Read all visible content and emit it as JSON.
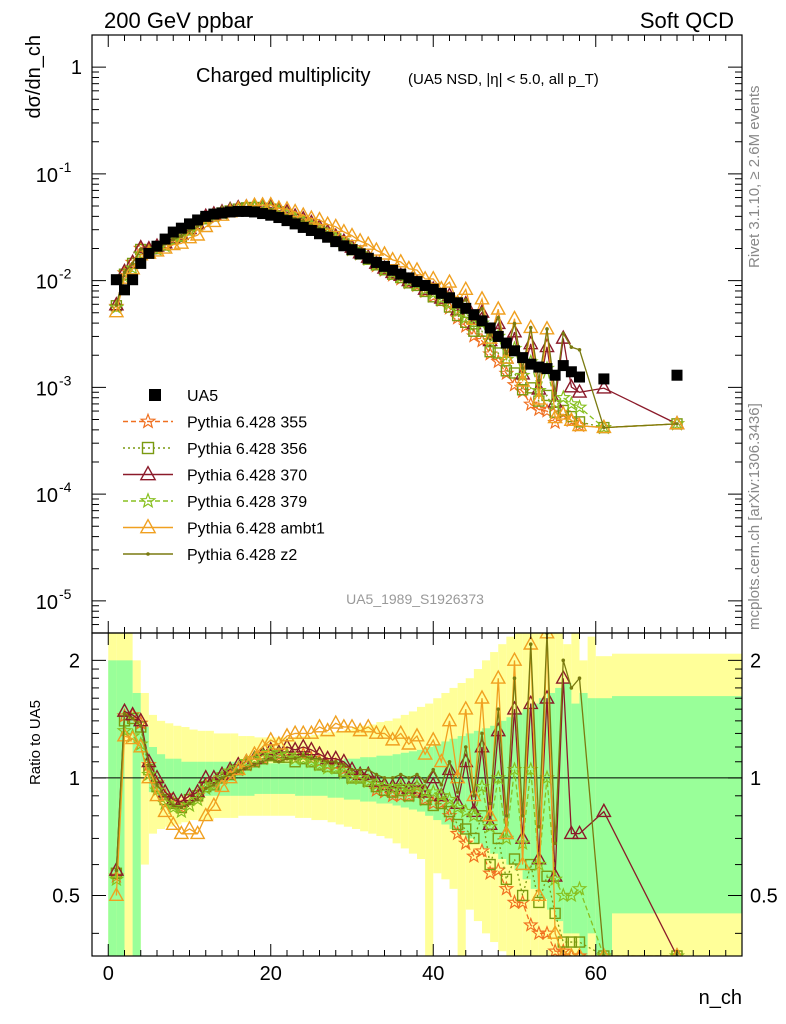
{
  "header": {
    "left": "200 GeV ppbar",
    "right": "Soft QCD"
  },
  "side_text": {
    "rivet": "Rivet 3.1.10, ≥ 2.6M events",
    "mcplots": "mcplots.cern.ch [arXiv:1306.3436]"
  },
  "colors": {
    "UA5": "#000000",
    "355": "#f07020",
    "356": "#7a9a10",
    "370": "#8b1a2a",
    "379": "#88c020",
    "ambt1": "#f0a020",
    "z2": "#7a7a10",
    "band_inner": "#99ff99",
    "band_outer": "#ffff99"
  },
  "chart_data": {
    "type": "line",
    "title": "Charged multiplicity",
    "subtitle": "(UA5 NSD, |η| < 5.0, all p_T)",
    "ylabel": "dσ/dn_ch",
    "xlabel": "n_ch",
    "ratio_ylabel": "Ratio to UA5",
    "analysis_label": "UA5_1989_S1926373",
    "y_scale": "log",
    "ylim": [
      5e-06,
      2
    ],
    "xlim": [
      -2,
      78
    ],
    "ratio_ylim": [
      0.35,
      2.35
    ],
    "xticks": [
      "0",
      "20",
      "40",
      "60"
    ],
    "yticks": [
      "1",
      "10^-1",
      "10^-2",
      "10^-3",
      "10^-4",
      "10^-5"
    ],
    "ratio_yticks": [
      "0.5",
      "1",
      "2"
    ],
    "legend": {
      "position": "left-middle",
      "entries": [
        "UA5",
        "Pythia 6.428 355",
        "Pythia 6.428 356",
        "Pythia 6.428 370",
        "Pythia 6.428 379",
        "Pythia 6.428 ambt1",
        "Pythia 6.428 z2"
      ]
    },
    "data_points": {
      "x": [
        1,
        2,
        3,
        4,
        5,
        6,
        7,
        8,
        9,
        10,
        11,
        12,
        13,
        14,
        15,
        16,
        17,
        18,
        19,
        20,
        21,
        22,
        23,
        24,
        25,
        26,
        27,
        28,
        29,
        30,
        31,
        32,
        33,
        34,
        35,
        36,
        37,
        38,
        39,
        40,
        41,
        42,
        43,
        44,
        45,
        46,
        47,
        48,
        49,
        50,
        51,
        52,
        53,
        54,
        55,
        56,
        57,
        58,
        61,
        70
      ],
      "y": [
        0.0102,
        0.0082,
        0.0102,
        0.0145,
        0.018,
        0.021,
        0.0245,
        0.0285,
        0.031,
        0.034,
        0.037,
        0.04,
        0.042,
        0.043,
        0.044,
        0.0445,
        0.0445,
        0.044,
        0.0425,
        0.041,
        0.039,
        0.0365,
        0.034,
        0.0315,
        0.0295,
        0.0275,
        0.0255,
        0.0232,
        0.0212,
        0.0195,
        0.0178,
        0.0162,
        0.0148,
        0.0136,
        0.0125,
        0.0115,
        0.0106,
        0.0098,
        0.009,
        0.0083,
        0.0076,
        0.0069,
        0.0062,
        0.0055,
        0.0048,
        0.0042,
        0.0036,
        0.003,
        0.0026,
        0.0022,
        0.0019,
        0.00165,
        0.00155,
        0.0015,
        0.0013,
        0.0016,
        0.0014,
        0.00125,
        0.0012,
        0.0013
      ]
    },
    "bands": {
      "edges": [
        0,
        1,
        2,
        3,
        4,
        5,
        6,
        7,
        8,
        9,
        10,
        11,
        12,
        13,
        14,
        15,
        16,
        17,
        18,
        19,
        20,
        21,
        22,
        23,
        24,
        25,
        26,
        27,
        28,
        29,
        30,
        31,
        32,
        33,
        34,
        35,
        36,
        37,
        38,
        39,
        40,
        41,
        42,
        43,
        44,
        45,
        46,
        47,
        48,
        49,
        50,
        51,
        52,
        53,
        54,
        55,
        56,
        57,
        58,
        59,
        60,
        62,
        78
      ],
      "inner": [
        [
          0.35,
          2
        ],
        [
          0.35,
          2
        ],
        [
          1.3,
          2
        ],
        [
          0.35,
          1.65
        ],
        [
          1.1,
          1.35
        ],
        [
          0.92,
          1.2
        ],
        [
          0.9,
          1.15
        ],
        [
          0.89,
          1.12
        ],
        [
          0.89,
          1.12
        ],
        [
          0.9,
          1.1
        ],
        [
          0.9,
          1.1
        ],
        [
          0.9,
          1.1
        ],
        [
          0.9,
          1.1
        ],
        [
          0.9,
          1.1
        ],
        [
          0.9,
          1.1
        ],
        [
          0.9,
          1.1
        ],
        [
          0.9,
          1.1
        ],
        [
          0.9,
          1.1
        ],
        [
          0.91,
          1.09
        ],
        [
          0.91,
          1.09
        ],
        [
          0.91,
          1.09
        ],
        [
          0.91,
          1.09
        ],
        [
          0.91,
          1.09
        ],
        [
          0.9,
          1.1
        ],
        [
          0.9,
          1.1
        ],
        [
          0.9,
          1.1
        ],
        [
          0.9,
          1.1
        ],
        [
          0.89,
          1.11
        ],
        [
          0.89,
          1.11
        ],
        [
          0.88,
          1.12
        ],
        [
          0.88,
          1.12
        ],
        [
          0.87,
          1.13
        ],
        [
          0.87,
          1.13
        ],
        [
          0.86,
          1.14
        ],
        [
          0.86,
          1.14
        ],
        [
          0.85,
          1.15
        ],
        [
          0.84,
          1.16
        ],
        [
          0.83,
          1.17
        ],
        [
          0.82,
          1.18
        ],
        [
          0.8,
          1.2
        ],
        [
          0.78,
          1.22
        ],
        [
          0.76,
          1.24
        ],
        [
          0.74,
          1.26
        ],
        [
          0.72,
          1.28
        ],
        [
          0.7,
          1.3
        ],
        [
          0.68,
          1.32
        ],
        [
          0.66,
          1.34
        ],
        [
          0.64,
          1.36
        ],
        [
          0.62,
          1.4
        ],
        [
          0.6,
          1.43
        ],
        [
          0.58,
          1.47
        ],
        [
          0.55,
          1.5
        ],
        [
          0.52,
          1.55
        ],
        [
          0.49,
          1.6
        ],
        [
          0.46,
          1.65
        ],
        [
          0.43,
          1.7
        ],
        [
          0.4,
          1.75
        ],
        [
          0.4,
          1.55
        ],
        [
          0.35,
          1.65
        ],
        [
          0.4,
          1.6
        ],
        [
          0.35,
          1.6
        ],
        [
          0.45,
          1.62
        ]
      ],
      "outer": [
        [
          0.35,
          2.35
        ],
        [
          0.35,
          2.35
        ],
        [
          0.35,
          2.35
        ],
        [
          0.35,
          2.0
        ],
        [
          0.6,
          1.65
        ],
        [
          0.72,
          1.45
        ],
        [
          0.74,
          1.4
        ],
        [
          0.75,
          1.38
        ],
        [
          0.76,
          1.36
        ],
        [
          0.77,
          1.35
        ],
        [
          0.78,
          1.33
        ],
        [
          0.78,
          1.32
        ],
        [
          0.78,
          1.32
        ],
        [
          0.79,
          1.3
        ],
        [
          0.79,
          1.3
        ],
        [
          0.79,
          1.3
        ],
        [
          0.8,
          1.28
        ],
        [
          0.8,
          1.28
        ],
        [
          0.8,
          1.27
        ],
        [
          0.8,
          1.27
        ],
        [
          0.8,
          1.27
        ],
        [
          0.8,
          1.27
        ],
        [
          0.8,
          1.27
        ],
        [
          0.79,
          1.28
        ],
        [
          0.79,
          1.28
        ],
        [
          0.78,
          1.29
        ],
        [
          0.78,
          1.3
        ],
        [
          0.77,
          1.31
        ],
        [
          0.76,
          1.32
        ],
        [
          0.75,
          1.33
        ],
        [
          0.74,
          1.35
        ],
        [
          0.73,
          1.36
        ],
        [
          0.72,
          1.37
        ],
        [
          0.71,
          1.39
        ],
        [
          0.7,
          1.4
        ],
        [
          0.68,
          1.42
        ],
        [
          0.66,
          1.45
        ],
        [
          0.64,
          1.48
        ],
        [
          0.62,
          1.52
        ],
        [
          0.35,
          1.55
        ],
        [
          0.57,
          1.6
        ],
        [
          0.55,
          1.65
        ],
        [
          0.52,
          1.7
        ],
        [
          0.35,
          1.75
        ],
        [
          0.46,
          1.8
        ],
        [
          0.43,
          1.9
        ],
        [
          0.4,
          2.0
        ],
        [
          0.38,
          2.1
        ],
        [
          0.36,
          2.2
        ],
        [
          0.35,
          2.3
        ],
        [
          0.35,
          2.35
        ],
        [
          0.35,
          2.35
        ],
        [
          0.35,
          2.35
        ],
        [
          0.35,
          2.35
        ],
        [
          0.35,
          2.35
        ],
        [
          0.35,
          2.35
        ],
        [
          0.35,
          2.2
        ],
        [
          0.35,
          2.35
        ],
        [
          0.35,
          2.0
        ],
        [
          0.35,
          2.3
        ],
        [
          0.35,
          2.05
        ],
        [
          0.35,
          2.08
        ]
      ]
    },
    "series": [
      {
        "name": "Pythia 6.428 355",
        "key": "355",
        "marker": "star",
        "dash": "5,3",
        "ratio": [
          0.56,
          1.44,
          1.45,
          1.38,
          1.08,
          0.97,
          0.9,
          0.86,
          0.84,
          0.88,
          0.9,
          0.96,
          0.97,
          1.0,
          1.02,
          1.05,
          1.08,
          1.1,
          1.12,
          1.15,
          1.14,
          1.15,
          1.12,
          1.15,
          1.12,
          1.1,
          1.08,
          1.08,
          1.05,
          1.0,
          1.0,
          0.98,
          0.93,
          0.92,
          0.9,
          0.9,
          0.9,
          0.92,
          0.88,
          0.86,
          0.86,
          0.8,
          0.72,
          0.68,
          0.63,
          0.65,
          0.57,
          0.58,
          0.52,
          0.48,
          0.48,
          0.42,
          0.4,
          0.4,
          0.36,
          0.36,
          0.35,
          0.35,
          0.35,
          0.35
        ]
      },
      {
        "name": "Pythia 6.428 356",
        "key": "356",
        "marker": "square",
        "dash": "2,3",
        "ratio": [
          0.57,
          1.4,
          1.42,
          1.35,
          1.05,
          0.95,
          0.88,
          0.86,
          0.84,
          0.88,
          0.9,
          0.95,
          0.96,
          1.0,
          1.02,
          1.05,
          1.08,
          1.1,
          1.12,
          1.14,
          1.13,
          1.13,
          1.1,
          1.12,
          1.1,
          1.08,
          1.07,
          1.06,
          1.04,
          1.0,
          1.0,
          0.98,
          0.95,
          0.93,
          0.92,
          0.93,
          0.9,
          0.92,
          0.88,
          0.85,
          0.86,
          0.82,
          0.76,
          0.74,
          0.7,
          0.8,
          0.6,
          0.7,
          0.55,
          0.62,
          0.5,
          0.6,
          0.48,
          0.56,
          0.45,
          0.38,
          0.38,
          0.38,
          0.35,
          0.35
        ]
      },
      {
        "name": "Pythia 6.428 370",
        "key": "370",
        "marker": "triangle",
        "dash": "",
        "ratio": [
          0.58,
          1.48,
          1.45,
          1.4,
          1.1,
          1.0,
          0.92,
          0.88,
          0.87,
          0.9,
          0.92,
          1.0,
          1.0,
          1.02,
          1.05,
          1.08,
          1.1,
          1.12,
          1.15,
          1.18,
          1.16,
          1.2,
          1.18,
          1.2,
          1.18,
          1.15,
          1.12,
          1.12,
          1.1,
          1.05,
          1.02,
          1.02,
          0.98,
          0.96,
          0.95,
          0.97,
          0.94,
          0.98,
          0.92,
          1.0,
          0.9,
          1.05,
          0.86,
          1.1,
          0.82,
          1.2,
          0.76,
          1.32,
          0.72,
          1.5,
          0.7,
          1.55,
          0.62,
          1.6,
          0.56,
          1.8,
          0.72,
          0.72,
          0.82,
          0.35
        ]
      },
      {
        "name": "Pythia 6.428 379",
        "key": "379",
        "marker": "star",
        "dash": "5,3",
        "ratio": [
          0.55,
          1.32,
          1.28,
          1.22,
          1.02,
          0.93,
          0.86,
          0.84,
          0.82,
          0.85,
          0.88,
          0.94,
          0.96,
          1.0,
          1.04,
          1.06,
          1.1,
          1.12,
          1.14,
          1.16,
          1.15,
          1.14,
          1.12,
          1.12,
          1.1,
          1.08,
          1.06,
          1.06,
          1.03,
          1.0,
          1.0,
          0.98,
          0.96,
          0.95,
          0.94,
          0.95,
          0.93,
          0.95,
          0.92,
          0.92,
          0.9,
          0.88,
          0.84,
          0.82,
          0.8,
          0.95,
          0.75,
          1.0,
          0.7,
          1.05,
          0.68,
          1.05,
          0.6,
          1.0,
          0.55,
          0.5,
          0.5,
          0.52,
          0.35,
          0.35
        ]
      },
      {
        "name": "Pythia 6.428 ambt1",
        "key": "ambt1",
        "marker": "triangle",
        "dash": "",
        "ratio": [
          0.5,
          1.28,
          1.26,
          1.2,
          1.0,
          0.9,
          0.82,
          0.76,
          0.72,
          0.74,
          0.72,
          0.8,
          0.85,
          0.95,
          1.0,
          1.05,
          1.1,
          1.15,
          1.2,
          1.25,
          1.22,
          1.28,
          1.3,
          1.3,
          1.3,
          1.35,
          1.32,
          1.38,
          1.35,
          1.35,
          1.32,
          1.35,
          1.3,
          1.3,
          1.25,
          1.3,
          1.22,
          1.28,
          1.15,
          1.25,
          1.1,
          1.4,
          1.0,
          1.5,
          0.9,
          1.6,
          0.8,
          1.8,
          0.72,
          2.0,
          0.6,
          2.2,
          0.5,
          2.35,
          0.4,
          0.35,
          0.35,
          0.35,
          0.35,
          0.35
        ]
      },
      {
        "name": "Pythia 6.428 z2",
        "key": "z2",
        "marker": "dot",
        "dash": "",
        "ratio": [
          0.58,
          1.46,
          1.42,
          1.36,
          1.08,
          0.96,
          0.9,
          0.85,
          0.84,
          0.86,
          0.88,
          0.94,
          0.96,
          1.0,
          1.02,
          1.04,
          1.06,
          1.08,
          1.1,
          1.12,
          1.1,
          1.12,
          1.12,
          1.14,
          1.12,
          1.12,
          1.1,
          1.1,
          1.08,
          1.05,
          1.05,
          1.05,
          1.02,
          1.0,
          1.0,
          1.02,
          1.0,
          1.02,
          0.98,
          1.05,
          0.96,
          1.1,
          0.92,
          1.2,
          0.9,
          1.3,
          0.86,
          1.5,
          0.8,
          1.8,
          0.8,
          2.2,
          0.75,
          2.35,
          0.68,
          2.0,
          1.7,
          1.8,
          0.35,
          0.35
        ]
      }
    ]
  }
}
